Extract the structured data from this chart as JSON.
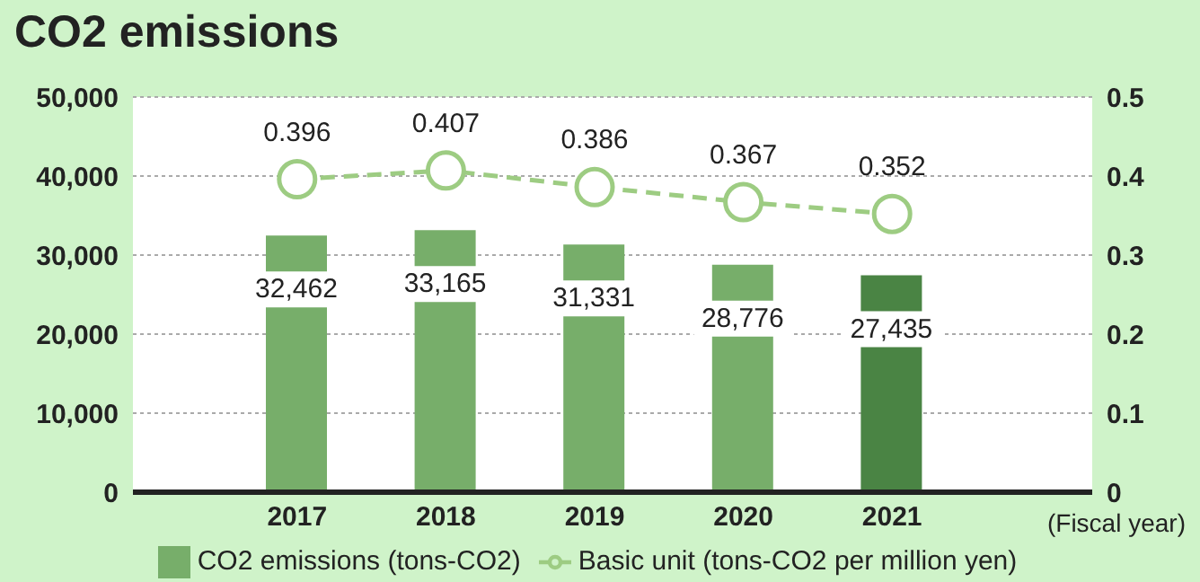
{
  "chart_data": {
    "type": "bar",
    "title": "CO2 emissions",
    "xlabel": "(Fiscal year)",
    "categories": [
      "2017",
      "2018",
      "2019",
      "2020",
      "2021"
    ],
    "series": [
      {
        "name": "CO2 emissions (tons-CO2)",
        "color": "#77ae6a",
        "colors": [
          "#77ae6a",
          "#77ae6a",
          "#77ae6a",
          "#77ae6a",
          "#4a8444"
        ],
        "values": [
          32462,
          33165,
          31331,
          28776,
          27435
        ],
        "value_labels": [
          "32,462",
          "33,165",
          "31,331",
          "28,776",
          "27,435"
        ]
      },
      {
        "name": "Basic unit (tons-CO2 per million yen)",
        "type": "line",
        "axis": "y2",
        "color": "#9dcc82",
        "values": [
          0.396,
          0.407,
          0.386,
          0.367,
          0.352
        ],
        "value_labels": [
          "0.396",
          "0.407",
          "0.386",
          "0.367",
          "0.352"
        ]
      }
    ],
    "ylim": [
      0,
      50000
    ],
    "yticks": [
      0,
      {
        "value": 10000,
        "label": "10,000"
      },
      {
        "value": 20000,
        "label": "20,000"
      },
      {
        "value": 30000,
        "label": "30,000"
      },
      {
        "value": 40000,
        "label": "40,000"
      },
      {
        "value": 50000,
        "label": "50,000"
      }
    ],
    "y2lim": [
      0,
      0.5
    ],
    "y2ticks": [
      0,
      0.1,
      0.2,
      0.3,
      0.4,
      0.5
    ],
    "grid": "y",
    "legend": "bottom",
    "marker": "circle",
    "line_style": "dashed"
  }
}
